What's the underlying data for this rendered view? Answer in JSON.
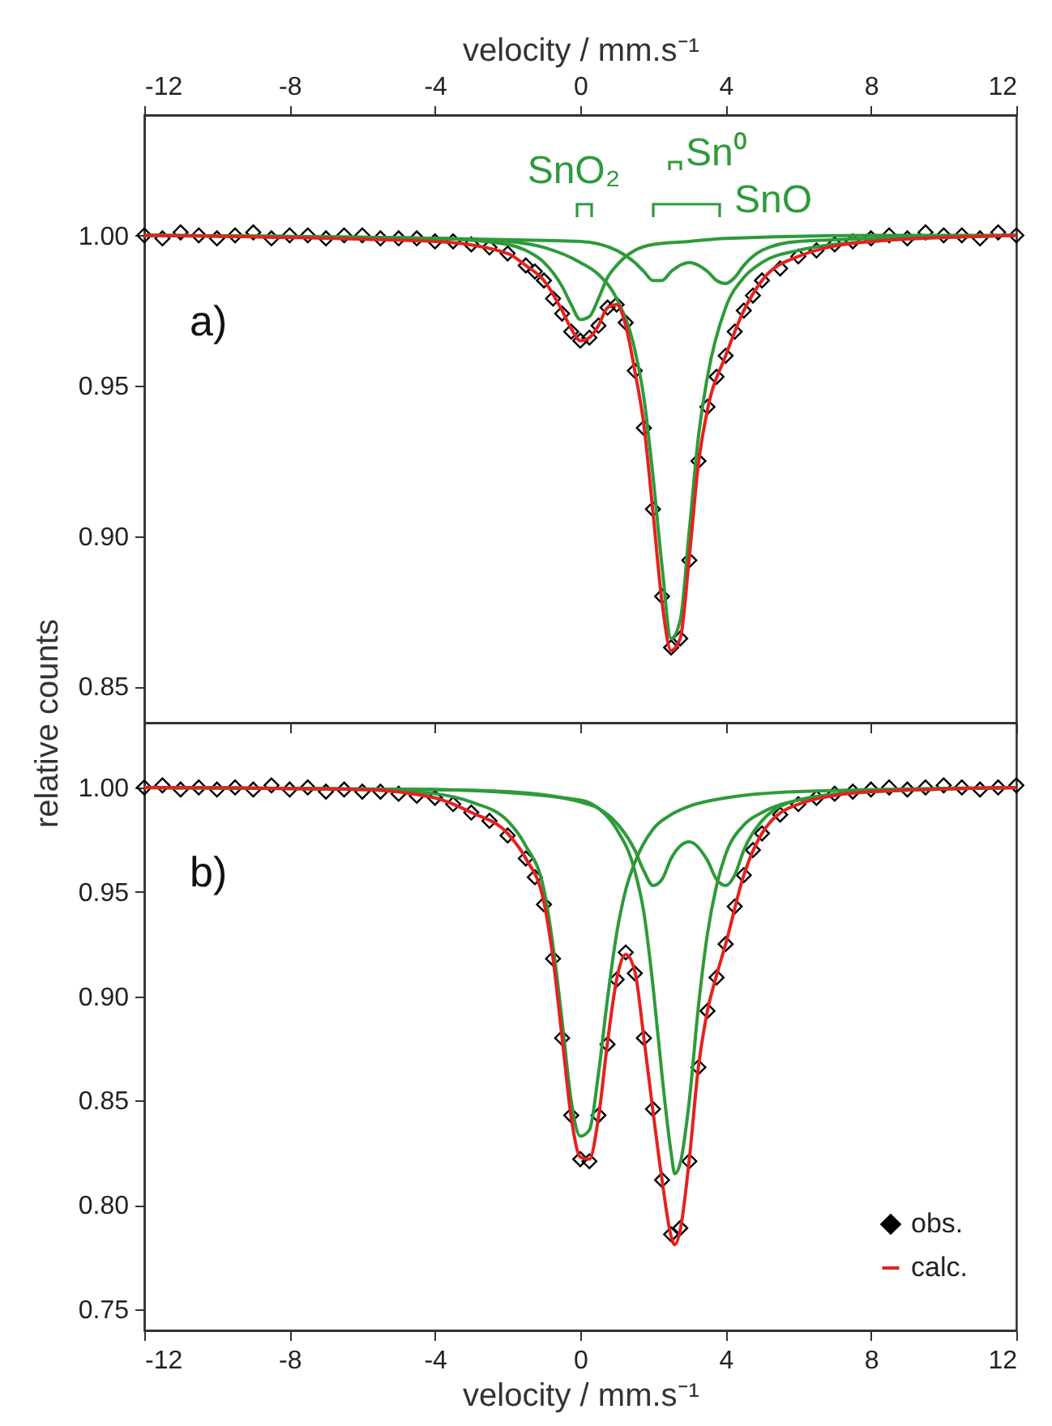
{
  "chart_data": [
    {
      "type": "line",
      "ylabel": "relative counts",
      "x2label": "velocity / mm.s⁻¹",
      "xlim": [
        -12,
        12
      ],
      "xticks": [
        -12,
        -8,
        -4,
        0,
        4,
        8,
        12
      ],
      "x2lim": [
        -12,
        12
      ],
      "x2ticks": [
        -12,
        -8,
        -4,
        0,
        4,
        8,
        12
      ],
      "ylim": [
        0.838,
        1.04
      ],
      "yticks": [
        {
          "value": 0.85,
          "label": "0.85"
        },
        {
          "value": 0.9,
          "label": "0.90"
        },
        {
          "value": 0.95,
          "label": "0.95"
        },
        {
          "value": 1.0,
          "label": "1.00"
        }
      ],
      "tick_labels": "y",
      "annotations": [
        "a)",
        "SnO₂",
        "Sn⁰",
        "SnO"
      ],
      "series": [
        {
          "type": "scatter",
          "marker": "diamond",
          "color": "#000000",
          "x": [
            -12,
            -11.5,
            -11,
            -10.5,
            -10,
            -9.5,
            -9,
            -8.5,
            -8,
            -7.5,
            -7,
            -6.5,
            -6,
            -5.5,
            -5,
            -4.5,
            -4,
            -3.5,
            -3,
            -2.5,
            -2,
            -1.5,
            -1.25,
            -1,
            -0.75,
            -0.5,
            -0.25,
            0,
            0.25,
            0.5,
            0.75,
            1,
            1.25,
            1.5,
            1.75,
            2,
            2.25,
            2.5,
            2.75,
            3,
            3.25,
            3.5,
            3.75,
            4,
            4.25,
            4.5,
            4.75,
            5,
            5.5,
            6,
            6.5,
            7,
            7.5,
            8,
            8.5,
            9,
            9.5,
            10,
            10.5,
            11,
            11.5,
            12
          ],
          "values": [
            1.0,
            0.999,
            1.001,
            1.0,
            0.999,
            1.0,
            1.001,
            0.999,
            1.0,
            1.0,
            0.999,
            1.0,
            1.0,
            0.999,
            0.999,
            0.999,
            0.998,
            0.998,
            0.997,
            0.996,
            0.994,
            0.99,
            0.988,
            0.985,
            0.979,
            0.974,
            0.968,
            0.965,
            0.966,
            0.97,
            0.976,
            0.977,
            0.971,
            0.955,
            0.936,
            0.909,
            0.88,
            0.863,
            0.866,
            0.892,
            0.925,
            0.943,
            0.953,
            0.96,
            0.968,
            0.975,
            0.98,
            0.985,
            0.989,
            0.993,
            0.995,
            0.997,
            0.998,
            0.999,
            1.0,
            0.999,
            1.001,
            1.0,
            1.0,
            0.999,
            1.001,
            1.0
          ]
        },
        {
          "color": "#2e9a3a",
          "x": [
            -12,
            -4,
            -2,
            -1.5,
            -1,
            -0.5,
            -0.25,
            0,
            0.25,
            0.5,
            0.75,
            1,
            1.5,
            2,
            3,
            4,
            8,
            12
          ],
          "values": [
            1.0,
            0.999,
            0.997,
            0.995,
            0.991,
            0.983,
            0.977,
            0.972,
            0.973,
            0.979,
            0.986,
            0.99,
            0.995,
            0.997,
            0.998,
            0.999,
            1.0,
            1.0
          ]
        },
        {
          "color": "#2e9a3a",
          "x": [
            -12,
            -4,
            -2,
            -1,
            0,
            0.5,
            1,
            1.5,
            1.75,
            2,
            2.25,
            2.5,
            2.75,
            3,
            3.25,
            3.5,
            4,
            4.5,
            5,
            6,
            8,
            12
          ],
          "values": [
            1.0,
            0.999,
            0.998,
            0.996,
            0.991,
            0.987,
            0.979,
            0.962,
            0.946,
            0.92,
            0.89,
            0.866,
            0.872,
            0.902,
            0.933,
            0.953,
            0.976,
            0.986,
            0.991,
            0.995,
            0.998,
            1.0
          ]
        },
        {
          "color": "#2e9a3a",
          "x": [
            -12,
            0,
            1,
            1.5,
            1.75,
            2,
            2.25,
            2.5,
            3,
            3.5,
            3.75,
            4,
            4.25,
            4.5,
            5,
            6,
            12
          ],
          "values": [
            1.0,
            0.998,
            0.995,
            0.991,
            0.988,
            0.985,
            0.985,
            0.988,
            0.991,
            0.988,
            0.985,
            0.984,
            0.986,
            0.99,
            0.995,
            0.998,
            1.0
          ]
        },
        {
          "color": "#e3221f",
          "x": [
            -12,
            -4,
            -2,
            -1.5,
            -1,
            -0.5,
            -0.25,
            0,
            0.25,
            0.5,
            0.75,
            1,
            1.25,
            1.5,
            1.75,
            2,
            2.25,
            2.5,
            2.75,
            3,
            3.25,
            3.5,
            4,
            4.5,
            5,
            6,
            8,
            12
          ],
          "values": [
            1.0,
            0.998,
            0.994,
            0.99,
            0.985,
            0.975,
            0.969,
            0.965,
            0.966,
            0.97,
            0.976,
            0.977,
            0.97,
            0.955,
            0.937,
            0.908,
            0.878,
            0.862,
            0.866,
            0.893,
            0.924,
            0.942,
            0.96,
            0.975,
            0.985,
            0.993,
            0.998,
            1.0
          ]
        }
      ]
    },
    {
      "type": "line",
      "xlabel": "velocity / mm.s⁻¹",
      "xlim": [
        -12,
        12
      ],
      "xticks": [
        -12,
        -8,
        -4,
        0,
        4,
        8,
        12
      ],
      "ylim": [
        0.74,
        1.031
      ],
      "yticks": [
        {
          "value": 0.75,
          "label": "0.75"
        },
        {
          "value": 0.8,
          "label": "0.80"
        },
        {
          "value": 0.85,
          "label": "0.85"
        },
        {
          "value": 0.9,
          "label": "0.90"
        },
        {
          "value": 0.95,
          "label": "0.95"
        },
        {
          "value": 1.0,
          "label": "1.00"
        }
      ],
      "legend": "bottom right",
      "annotations": [
        "b)"
      ],
      "series": [
        {
          "name": "obs.",
          "type": "scatter",
          "marker": "diamond",
          "color": "#000000",
          "x": [
            -12,
            -11.5,
            -11,
            -10.5,
            -10,
            -9.5,
            -9,
            -8.5,
            -8,
            -7.5,
            -7,
            -6.5,
            -6,
            -5.5,
            -5,
            -4.5,
            -4,
            -3.5,
            -3,
            -2.5,
            -2,
            -1.5,
            -1.25,
            -1,
            -0.75,
            -0.5,
            -0.25,
            0,
            0.25,
            0.5,
            0.75,
            1,
            1.25,
            1.5,
            1.75,
            2,
            2.25,
            2.5,
            2.75,
            3,
            3.25,
            3.5,
            3.75,
            4,
            4.25,
            4.5,
            4.75,
            5,
            5.5,
            6,
            6.5,
            7,
            7.5,
            8,
            8.5,
            9,
            9.5,
            10,
            10.5,
            11,
            11.5,
            12
          ],
          "values": [
            1.0,
            1.001,
            0.999,
            1.0,
            0.999,
            1.0,
            0.999,
            1.001,
            0.999,
            1.0,
            0.998,
            0.999,
            0.998,
            0.998,
            0.997,
            0.996,
            0.995,
            0.992,
            0.988,
            0.984,
            0.977,
            0.966,
            0.957,
            0.944,
            0.918,
            0.88,
            0.843,
            0.822,
            0.821,
            0.843,
            0.877,
            0.908,
            0.921,
            0.911,
            0.88,
            0.846,
            0.812,
            0.786,
            0.789,
            0.821,
            0.866,
            0.893,
            0.909,
            0.925,
            0.943,
            0.958,
            0.97,
            0.978,
            0.987,
            0.992,
            0.995,
            0.997,
            0.998,
            0.999,
            1.0,
            0.999,
            1.0,
            1.001,
            1.0,
            0.999,
            1.0,
            1.001
          ]
        },
        {
          "color": "#2e9a3a",
          "x": [
            -12,
            -6,
            -4,
            -3,
            -2,
            -1.5,
            -1,
            -0.75,
            -0.5,
            -0.25,
            0,
            0.25,
            0.5,
            0.75,
            1,
            1.25,
            1.5,
            2,
            2.5,
            3,
            4,
            6,
            12
          ],
          "values": [
            1.0,
            0.999,
            0.997,
            0.993,
            0.984,
            0.972,
            0.951,
            0.924,
            0.888,
            0.85,
            0.833,
            0.836,
            0.863,
            0.899,
            0.93,
            0.951,
            0.964,
            0.98,
            0.987,
            0.991,
            0.995,
            0.998,
            1.0
          ]
        },
        {
          "color": "#2e9a3a",
          "x": [
            -12,
            -4,
            0,
            0.5,
            1,
            1.5,
            1.75,
            2,
            2.25,
            2.5,
            2.6,
            2.75,
            3,
            3.25,
            3.5,
            3.75,
            4,
            4.5,
            5,
            6,
            8,
            12
          ],
          "values": [
            1.0,
            0.999,
            0.994,
            0.99,
            0.98,
            0.96,
            0.94,
            0.905,
            0.862,
            0.825,
            0.815,
            0.82,
            0.85,
            0.895,
            0.93,
            0.953,
            0.968,
            0.982,
            0.988,
            0.994,
            0.998,
            1.0
          ]
        },
        {
          "color": "#2e9a3a",
          "x": [
            -12,
            -4,
            -2,
            0,
            0.5,
            1,
            1.5,
            1.75,
            2,
            2.25,
            2.5,
            3,
            3.5,
            3.75,
            4,
            4.25,
            4.5,
            5,
            6,
            8,
            12
          ],
          "values": [
            1.0,
            0.999,
            0.998,
            0.993,
            0.99,
            0.983,
            0.97,
            0.96,
            0.953,
            0.956,
            0.966,
            0.974,
            0.965,
            0.956,
            0.953,
            0.958,
            0.97,
            0.984,
            0.994,
            0.998,
            1.0
          ]
        },
        {
          "name": "calc.",
          "color": "#e3221f",
          "x": [
            -12,
            -6,
            -4,
            -3,
            -2,
            -1.5,
            -1,
            -0.75,
            -0.5,
            -0.25,
            0,
            0.25,
            0.5,
            0.75,
            1,
            1.25,
            1.5,
            1.75,
            2,
            2.25,
            2.5,
            2.6,
            2.75,
            3,
            3.25,
            3.5,
            3.75,
            4,
            4.5,
            5,
            6,
            8,
            12
          ],
          "values": [
            1.0,
            0.999,
            0.995,
            0.988,
            0.978,
            0.966,
            0.945,
            0.918,
            0.88,
            0.842,
            0.823,
            0.822,
            0.842,
            0.878,
            0.908,
            0.92,
            0.912,
            0.88,
            0.845,
            0.812,
            0.785,
            0.781,
            0.788,
            0.822,
            0.866,
            0.893,
            0.91,
            0.925,
            0.958,
            0.978,
            0.992,
            0.998,
            1.0
          ]
        }
      ]
    }
  ]
}
